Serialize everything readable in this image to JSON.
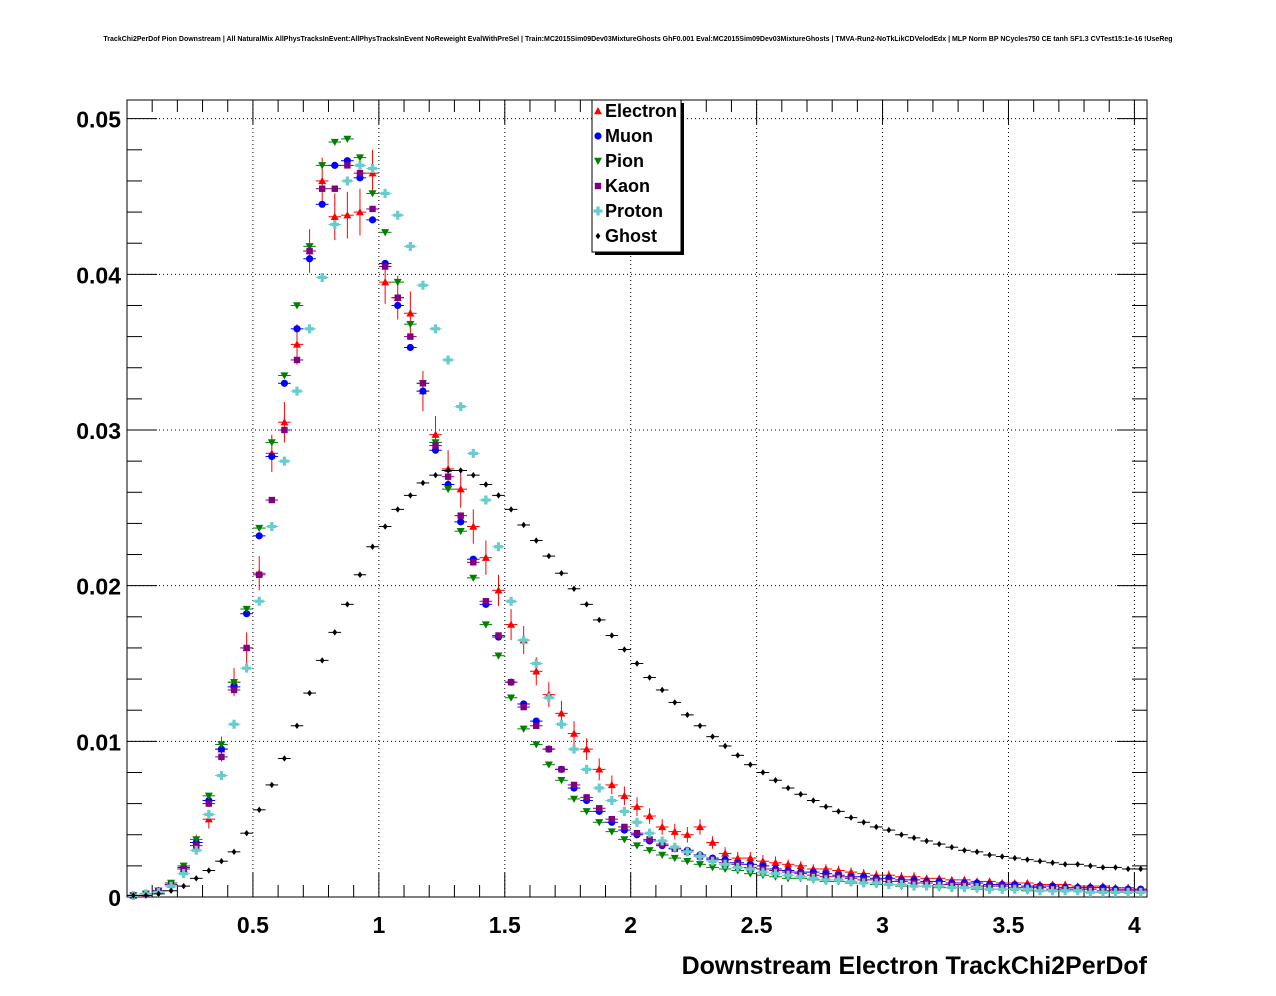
{
  "chart_data": {
    "type": "scatter",
    "title": "TrackChi2PerDof Pion Downstream | All NaturalMix AllPhysTracksInEvent:AllPhysTracksInEvent NoReweight EvalWithPreSel | Train:MC2015Sim09Dev03MixtureGhosts GhF0.001 Eval:MC2015Sim09Dev03MixtureGhosts | TMVA-Run2-NoTkLikCDVelodEdx | MLP Norm BP NCycles750 CE tanh SF1.3 CVTest15:1e-16 !UseReg",
    "xlabel": "Downstream Electron TrackChi2PerDof",
    "ylabel": "",
    "xlim": [
      0,
      4.05
    ],
    "ylim": [
      0,
      0.0512
    ],
    "x_ticks": [
      "0.5",
      "1",
      "1.5",
      "2",
      "2.5",
      "3",
      "3.5",
      "4"
    ],
    "x_tick_values": [
      0.5,
      1,
      1.5,
      2,
      2.5,
      3,
      3.5,
      4
    ],
    "y_ticks": [
      "0",
      "0.01",
      "0.02",
      "0.03",
      "0.04",
      "0.05"
    ],
    "y_tick_values": [
      0,
      0.01,
      0.02,
      0.03,
      0.04,
      0.05
    ],
    "grid": true,
    "legend_position": "top-center",
    "bin_width": 0.05,
    "x": [
      0.025,
      0.075,
      0.125,
      0.175,
      0.225,
      0.275,
      0.325,
      0.375,
      0.425,
      0.475,
      0.525,
      0.575,
      0.625,
      0.675,
      0.725,
      0.775,
      0.825,
      0.875,
      0.925,
      0.975,
      1.025,
      1.075,
      1.125,
      1.175,
      1.225,
      1.275,
      1.325,
      1.375,
      1.425,
      1.475,
      1.525,
      1.575,
      1.625,
      1.675,
      1.725,
      1.775,
      1.825,
      1.875,
      1.925,
      1.975,
      2.025,
      2.075,
      2.125,
      2.175,
      2.225,
      2.275,
      2.325,
      2.375,
      2.425,
      2.475,
      2.525,
      2.575,
      2.625,
      2.675,
      2.725,
      2.775,
      2.825,
      2.875,
      2.925,
      2.975,
      3.025,
      3.075,
      3.125,
      3.175,
      3.225,
      3.275,
      3.325,
      3.375,
      3.425,
      3.475,
      3.525,
      3.575,
      3.625,
      3.675,
      3.725,
      3.775,
      3.825,
      3.875,
      3.925,
      3.975,
      4.025
    ],
    "series": [
      {
        "name": "Electron",
        "marker": "triangle-up",
        "color": "#ff0000",
        "values": [
          0.0001,
          0.0002,
          0.0004,
          0.0008,
          0.0018,
          0.0035,
          0.005,
          0.0095,
          0.0138,
          0.016,
          0.0208,
          0.0285,
          0.0305,
          0.0355,
          0.0415,
          0.046,
          0.0437,
          0.0438,
          0.044,
          0.0465,
          0.0395,
          0.0385,
          0.0375,
          0.0325,
          0.0297,
          0.0275,
          0.0262,
          0.0238,
          0.0218,
          0.0197,
          0.0175,
          0.0165,
          0.0145,
          0.013,
          0.0118,
          0.0105,
          0.0095,
          0.0082,
          0.0072,
          0.0065,
          0.0058,
          0.0052,
          0.0045,
          0.0042,
          0.004,
          0.0045,
          0.0035,
          0.0028,
          0.0025,
          0.0025,
          0.0023,
          0.0022,
          0.0021,
          0.002,
          0.0018,
          0.0018,
          0.0017,
          0.0016,
          0.0015,
          0.0014,
          0.0014,
          0.0013,
          0.0013,
          0.0012,
          0.0012,
          0.0011,
          0.0011,
          0.001,
          0.001,
          0.0009,
          0.0009,
          0.0009,
          0.0008,
          0.0008,
          0.0008,
          0.0007,
          0.0007,
          0.0007,
          0.0006,
          0.0006,
          0.0005
        ],
        "errors": [
          0.0001,
          0.0002,
          0.0002,
          0.0003,
          0.0004,
          0.0005,
          0.0006,
          0.0008,
          0.0009,
          0.001,
          0.0011,
          0.0012,
          0.0013,
          0.0013,
          0.0014,
          0.0015,
          0.0015,
          0.0015,
          0.0015,
          0.0015,
          0.0014,
          0.0014,
          0.0014,
          0.0013,
          0.0012,
          0.0012,
          0.0012,
          0.0011,
          0.0011,
          0.001,
          0.001,
          0.0009,
          0.0009,
          0.0008,
          0.0008,
          0.0008,
          0.0007,
          0.0007,
          0.0006,
          0.0006,
          0.0006,
          0.0005,
          0.0005,
          0.0005,
          0.0005,
          0.0005,
          0.0004,
          0.0004,
          0.0004,
          0.0004,
          0.0004,
          0.0004,
          0.0003,
          0.0003,
          0.0003,
          0.0003,
          0.0003,
          0.0003,
          0.0003,
          0.0003,
          0.0003,
          0.0003,
          0.0003,
          0.0002,
          0.0002,
          0.0002,
          0.0002,
          0.0002,
          0.0002,
          0.0002,
          0.0002,
          0.0002,
          0.0002,
          0.0002,
          0.0002,
          0.0002,
          0.0002,
          0.0002,
          0.0002,
          0.0002,
          0.0002
        ]
      },
      {
        "name": "Muon",
        "marker": "circle",
        "color": "#0000ff",
        "values": [
          0.0001,
          0.0002,
          0.0004,
          0.0008,
          0.0019,
          0.0035,
          0.0062,
          0.0095,
          0.0135,
          0.0182,
          0.0232,
          0.0283,
          0.033,
          0.0365,
          0.041,
          0.0445,
          0.047,
          0.0473,
          0.0462,
          0.0435,
          0.0407,
          0.038,
          0.0353,
          0.0325,
          0.0287,
          0.0265,
          0.0241,
          0.0217,
          0.0188,
          0.0167,
          0.0138,
          0.0124,
          0.0113,
          0.0095,
          0.0082,
          0.007,
          0.0062,
          0.0055,
          0.0048,
          0.0043,
          0.004,
          0.0036,
          0.0033,
          0.0031,
          0.003,
          0.0027,
          0.0025,
          0.0024,
          0.0022,
          0.0021,
          0.002,
          0.0018,
          0.0017,
          0.0016,
          0.0016,
          0.0015,
          0.0014,
          0.0013,
          0.0013,
          0.0012,
          0.0012,
          0.0011,
          0.0011,
          0.001,
          0.001,
          0.0009,
          0.0009,
          0.0009,
          0.0008,
          0.0008,
          0.0008,
          0.0007,
          0.0007,
          0.0007,
          0.0006,
          0.0006,
          0.0006,
          0.0006,
          0.0005,
          0.0005,
          0.0005
        ]
      },
      {
        "name": "Pion",
        "marker": "triangle-down",
        "color": "#008000",
        "values": [
          0.0001,
          0.0002,
          0.0004,
          0.0009,
          0.002,
          0.0037,
          0.0065,
          0.0098,
          0.0138,
          0.0185,
          0.0237,
          0.0292,
          0.0335,
          0.038,
          0.0418,
          0.047,
          0.0485,
          0.0487,
          0.0475,
          0.0452,
          0.0427,
          0.0395,
          0.0368,
          0.033,
          0.0292,
          0.0262,
          0.0235,
          0.0205,
          0.0175,
          0.0155,
          0.0128,
          0.0108,
          0.0098,
          0.0085,
          0.0075,
          0.0063,
          0.0055,
          0.0048,
          0.0042,
          0.0037,
          0.0033,
          0.003,
          0.0027,
          0.0025,
          0.0023,
          0.0021,
          0.0019,
          0.0018,
          0.0017,
          0.0015,
          0.0014,
          0.0013,
          0.0012,
          0.0012,
          0.0011,
          0.001,
          0.001,
          0.0009,
          0.0009,
          0.0008,
          0.0008,
          0.0007,
          0.0007,
          0.0007,
          0.0006,
          0.0006,
          0.0006,
          0.0005,
          0.0005,
          0.0005,
          0.0005,
          0.0004,
          0.0004,
          0.0004,
          0.0004,
          0.0004,
          0.0003,
          0.0003,
          0.0003,
          0.0003,
          0.0003
        ]
      },
      {
        "name": "Kaon",
        "marker": "square",
        "color": "#800080",
        "values": [
          0.0001,
          0.0002,
          0.0004,
          0.0008,
          0.0018,
          0.0033,
          0.006,
          0.009,
          0.0133,
          0.016,
          0.0207,
          0.0255,
          0.03,
          0.0345,
          0.0415,
          0.0455,
          0.0455,
          0.047,
          0.0465,
          0.0442,
          0.0405,
          0.0385,
          0.036,
          0.033,
          0.029,
          0.027,
          0.0245,
          0.0215,
          0.019,
          0.0168,
          0.0138,
          0.0122,
          0.011,
          0.0095,
          0.0082,
          0.0072,
          0.0064,
          0.0057,
          0.005,
          0.0045,
          0.0041,
          0.0037,
          0.0034,
          0.0031,
          0.0029,
          0.0026,
          0.0024,
          0.0022,
          0.0021,
          0.0019,
          0.0018,
          0.0017,
          0.0016,
          0.0015,
          0.0014,
          0.0013,
          0.0013,
          0.0012,
          0.0011,
          0.0011,
          0.001,
          0.001,
          0.0009,
          0.0009,
          0.0008,
          0.0008,
          0.0008,
          0.0007,
          0.0007,
          0.0007,
          0.0006,
          0.0006,
          0.0006,
          0.0005,
          0.0005,
          0.0005,
          0.0005,
          0.0004,
          0.0004,
          0.0004,
          0.0004
        ]
      },
      {
        "name": "Proton",
        "marker": "cross",
        "color": "#66cccc",
        "values": [
          0.0001,
          0.0002,
          0.0003,
          0.0007,
          0.0015,
          0.003,
          0.0053,
          0.0078,
          0.0111,
          0.0147,
          0.019,
          0.0238,
          0.028,
          0.0325,
          0.0365,
          0.0398,
          0.0432,
          0.046,
          0.047,
          0.0468,
          0.0452,
          0.0438,
          0.0418,
          0.0393,
          0.0365,
          0.0345,
          0.0315,
          0.0285,
          0.0255,
          0.0225,
          0.019,
          0.0165,
          0.015,
          0.0128,
          0.0111,
          0.0095,
          0.0082,
          0.007,
          0.0062,
          0.0055,
          0.0048,
          0.0041,
          0.0036,
          0.0032,
          0.0029,
          0.0026,
          0.0023,
          0.0021,
          0.0019,
          0.0018,
          0.0016,
          0.0015,
          0.0014,
          0.0013,
          0.0012,
          0.0011,
          0.0011,
          0.001,
          0.0009,
          0.0009,
          0.0008,
          0.0008,
          0.0007,
          0.0007,
          0.0007,
          0.0006,
          0.0006,
          0.0006,
          0.0005,
          0.0005,
          0.0005,
          0.0005,
          0.0004,
          0.0004,
          0.0004,
          0.0004,
          0.0003,
          0.0003,
          0.0003,
          0.0003,
          0.0003
        ]
      },
      {
        "name": "Ghost",
        "marker": "diamond",
        "color": "#000000",
        "values": [
          0.0001,
          0.0001,
          0.0002,
          0.0004,
          0.0007,
          0.0012,
          0.0017,
          0.0023,
          0.0029,
          0.0041,
          0.0056,
          0.0072,
          0.0089,
          0.011,
          0.0131,
          0.0152,
          0.017,
          0.0188,
          0.0207,
          0.0225,
          0.0238,
          0.0249,
          0.0258,
          0.0266,
          0.0271,
          0.0274,
          0.0274,
          0.0271,
          0.0265,
          0.0258,
          0.0249,
          0.0239,
          0.0229,
          0.0219,
          0.0208,
          0.0198,
          0.0188,
          0.0178,
          0.0168,
          0.0159,
          0.015,
          0.0141,
          0.0133,
          0.0125,
          0.0117,
          0.011,
          0.0103,
          0.0097,
          0.0091,
          0.0085,
          0.008,
          0.0075,
          0.007,
          0.0066,
          0.0062,
          0.0058,
          0.0055,
          0.0051,
          0.0048,
          0.0045,
          0.0043,
          0.004,
          0.0038,
          0.0036,
          0.0034,
          0.0032,
          0.003,
          0.0029,
          0.0027,
          0.0026,
          0.0025,
          0.0024,
          0.0023,
          0.0022,
          0.0021,
          0.0021,
          0.002,
          0.0019,
          0.0019,
          0.0018,
          0.0018
        ]
      }
    ]
  }
}
